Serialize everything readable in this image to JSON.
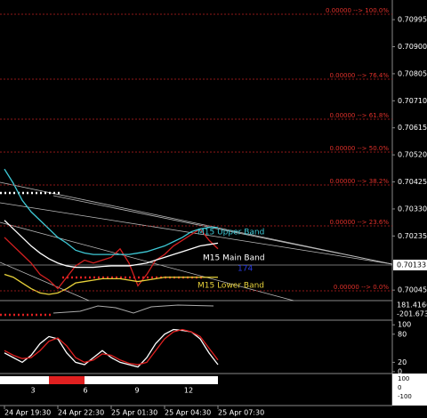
{
  "chart_data": [
    {
      "type": "line",
      "x": [
        0,
        2,
        4,
        6,
        8,
        10,
        12,
        14,
        16,
        18,
        20,
        22,
        24,
        26,
        28,
        30,
        32,
        34,
        36,
        38,
        40,
        42,
        44,
        46,
        48
      ],
      "xlim": [
        0,
        87
      ],
      "xticks": [
        {
          "value": 0,
          "label": "24 Apr 19:30"
        },
        {
          "value": 12,
          "label": "24 Apr 22:30"
        },
        {
          "value": 24,
          "label": "25 Apr 01:30"
        },
        {
          "value": 36,
          "label": "25 Apr 04:30"
        },
        {
          "value": 48,
          "label": "25 Apr 07:30"
        }
      ],
      "ylim": [
        0.70008,
        0.71064
      ],
      "yticks": [
        {
          "value": 0.70995,
          "label": "0.70995"
        },
        {
          "value": 0.709,
          "label": "0.70900"
        },
        {
          "value": 0.70805,
          "label": "0.70805"
        },
        {
          "value": 0.7071,
          "label": "0.70710"
        },
        {
          "value": 0.70615,
          "label": "0.70615"
        },
        {
          "value": 0.7052,
          "label": "0.70520"
        },
        {
          "value": 0.70425,
          "label": "0.70425"
        },
        {
          "value": 0.7033,
          "label": "0.70330"
        },
        {
          "value": 0.70235,
          "label": "0.70235"
        },
        {
          "value": 0.70045,
          "label": "0.70045"
        }
      ],
      "current_price": 0.70133,
      "annotations": [
        "0.00000 --> 100.0%",
        "0.00000 --> 76.4%",
        "0.00000 --> 61.8%",
        "0.00000 --> 50.0%",
        "0.00000 --> 38.2%",
        "0.00000 --> 23.6%",
        "0.00000 --> 0.0%",
        "M15 Upper Band",
        "M15 Main Band",
        "174",
        "M15 Lower Band"
      ],
      "series": [
        {
          "color": "#d42020",
          "values": [
            0.7023,
            0.702,
            0.7017,
            0.7014,
            0.701,
            0.7008,
            0.7005,
            0.7009,
            0.7013,
            0.7015,
            0.7014,
            0.7015,
            0.7016,
            0.7019,
            0.7014,
            0.7006,
            0.701,
            0.7015,
            0.7017,
            0.702,
            0.7022,
            0.7024,
            0.7026,
            0.7022,
            0.7019
          ]
        },
        {
          "color": "#3ec9d6",
          "values": [
            0.7047,
            0.7042,
            0.7036,
            0.7032,
            0.7029,
            0.7026,
            0.7023,
            0.7021,
            0.70185,
            0.70175,
            0.7017,
            0.7017,
            0.7017,
            0.7017,
            0.7017,
            0.70175,
            0.7018,
            0.7019,
            0.702,
            0.70215,
            0.7023,
            0.7025,
            0.7026,
            0.70265,
            0.70265
          ]
        },
        {
          "color": "#ffffff",
          "values": [
            0.7029,
            0.7026,
            0.7023,
            0.702,
            0.70175,
            0.70155,
            0.7014,
            0.7013,
            0.70125,
            0.70125,
            0.70125,
            0.70128,
            0.7013,
            0.7013,
            0.7013,
            0.70135,
            0.7014,
            0.7015,
            0.7016,
            0.7017,
            0.7018,
            0.7019,
            0.702,
            0.70205,
            0.7021
          ]
        },
        {
          "color": "#e8d23a",
          "values": [
            0.701,
            0.7009,
            0.7007,
            0.7005,
            0.70035,
            0.7003,
            0.70035,
            0.7005,
            0.7007,
            0.70075,
            0.7008,
            0.70085,
            0.70085,
            0.70085,
            0.7008,
            0.70075,
            0.7008,
            0.70085,
            0.7009,
            0.7009,
            0.7009,
            0.7009,
            0.7009,
            0.7009,
            0.7009
          ]
        }
      ]
    },
    {
      "type": "line",
      "x": [
        0,
        2,
        4,
        6,
        8,
        10,
        12,
        14,
        16,
        18,
        20,
        22,
        24,
        26,
        28,
        30,
        32,
        34,
        36,
        38,
        40,
        42,
        44,
        46,
        48
      ],
      "xlim": [
        0,
        87
      ],
      "ylim": [
        -2,
        108
      ],
      "yticks": [
        0,
        20,
        80,
        100
      ],
      "series": [
        {
          "color": "#ffffff",
          "values": [
            40,
            30,
            20,
            35,
            60,
            75,
            70,
            40,
            20,
            15,
            30,
            45,
            30,
            20,
            15,
            10,
            30,
            60,
            80,
            90,
            88,
            85,
            70,
            40,
            15
          ]
        },
        {
          "color": "#e02020",
          "values": [
            45,
            35,
            28,
            30,
            45,
            65,
            72,
            55,
            30,
            20,
            25,
            38,
            35,
            25,
            18,
            15,
            20,
            45,
            70,
            85,
            90,
            85,
            75,
            50,
            25
          ]
        }
      ]
    }
  ],
  "panel_labels": [
    "181.4166",
    "-201.673",
    "100",
    "0",
    "-100"
  ],
  "bar_counts": [
    "3",
    "6",
    "9",
    "12"
  ]
}
